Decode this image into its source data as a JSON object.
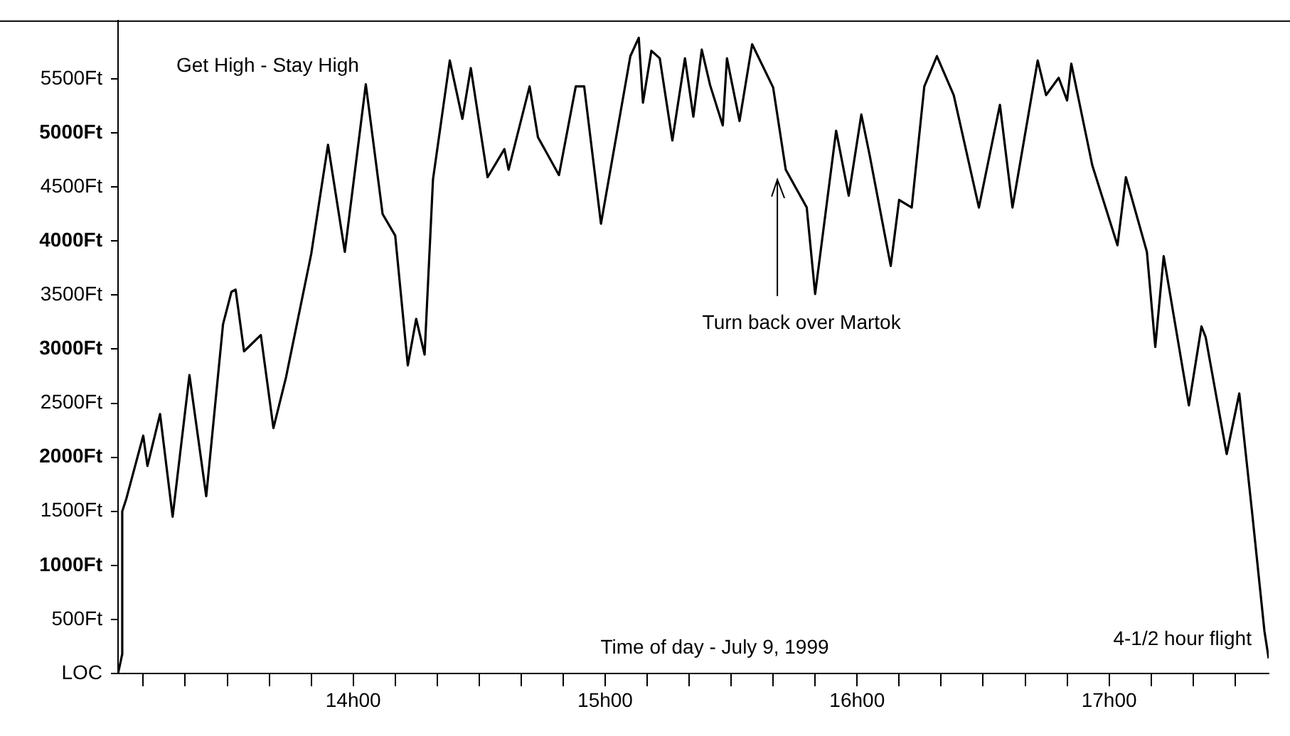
{
  "chart_data": {
    "type": "line",
    "xlabel": "Time of day - July 9, 1999",
    "annotations": [
      "Get High - Stay High",
      "Turn back over Martok",
      "4-1/2 hour flight"
    ],
    "x": [
      "1999-07-09T13:04",
      "1999-07-09T13:05",
      "1999-07-09T13:05",
      "1999-07-09T13:06",
      "1999-07-09T13:10",
      "1999-07-09T13:11",
      "1999-07-09T13:14",
      "1999-07-09T13:17",
      "1999-07-09T13:21",
      "1999-07-09T13:25",
      "1999-07-09T13:29",
      "1999-07-09T13:31",
      "1999-07-09T13:32",
      "1999-07-09T13:34",
      "1999-07-09T13:38",
      "1999-07-09T13:41",
      "1999-07-09T13:44",
      "1999-07-09T13:50",
      "1999-07-09T13:54",
      "1999-07-09T13:58",
      "1999-07-09T14:03",
      "1999-07-09T14:07",
      "1999-07-09T14:10",
      "1999-07-09T14:13",
      "1999-07-09T14:15",
      "1999-07-09T14:17",
      "1999-07-09T14:19",
      "1999-07-09T14:23",
      "1999-07-09T14:26",
      "1999-07-09T14:28",
      "1999-07-09T14:32",
      "1999-07-09T14:36",
      "1999-07-09T14:37",
      "1999-07-09T14:42",
      "1999-07-09T14:44",
      "1999-07-09T14:49",
      "1999-07-09T14:53",
      "1999-07-09T14:55",
      "1999-07-09T14:59",
      "1999-07-09T15:06",
      "1999-07-09T15:08",
      "1999-07-09T15:09",
      "1999-07-09T15:11",
      "1999-07-09T15:13",
      "1999-07-09T15:16",
      "1999-07-09T15:19",
      "1999-07-09T15:21",
      "1999-07-09T15:23",
      "1999-07-09T15:25",
      "1999-07-09T15:28",
      "1999-07-09T15:29",
      "1999-07-09T15:32",
      "1999-07-09T15:35",
      "1999-07-09T15:40",
      "1999-07-09T15:43",
      "1999-07-09T15:48",
      "1999-07-09T15:50",
      "1999-07-09T15:55",
      "1999-07-09T15:58",
      "1999-07-09T16:01",
      "1999-07-09T16:03",
      "1999-07-09T16:08",
      "1999-07-09T16:10",
      "1999-07-09T16:13",
      "1999-07-09T16:16",
      "1999-07-09T16:19",
      "1999-07-09T16:23",
      "1999-07-09T16:29",
      "1999-07-09T16:34",
      "1999-07-09T16:37",
      "1999-07-09T16:43",
      "1999-07-09T16:45",
      "1999-07-09T16:48",
      "1999-07-09T16:50",
      "1999-07-09T16:51",
      "1999-07-09T16:56",
      "1999-07-09T17:02",
      "1999-07-09T17:04",
      "1999-07-09T17:09",
      "1999-07-09T17:11",
      "1999-07-09T17:13",
      "1999-07-09T17:19",
      "1999-07-09T17:22",
      "1999-07-09T17:23",
      "1999-07-09T17:28",
      "1999-07-09T17:31",
      "1999-07-09T17:34",
      "1999-07-09T17:37",
      "1999-07-09T17:38"
    ],
    "series": [
      {
        "color": "#000000",
        "values": [
          0,
          180,
          1500,
          1620,
          2200,
          1920,
          2400,
          1450,
          2760,
          1640,
          3230,
          3530,
          3550,
          2980,
          3130,
          2270,
          2740,
          3880,
          4890,
          3900,
          5450,
          4250,
          4050,
          2850,
          3280,
          2950,
          4570,
          5670,
          5130,
          5600,
          4590,
          4850,
          4660,
          5430,
          4960,
          4610,
          5430,
          5430,
          4160,
          5710,
          5880,
          5280,
          5760,
          5690,
          4930,
          5690,
          5150,
          5770,
          5440,
          5070,
          5690,
          5110,
          5820,
          5420,
          4660,
          4310,
          3510,
          5020,
          4420,
          5170,
          4790,
          3770,
          4380,
          4310,
          5430,
          5710,
          5350,
          4310,
          5260,
          4310,
          5670,
          5350,
          5510,
          5300,
          5640,
          4700,
          3960,
          4590,
          3900,
          3020,
          3860,
          2480,
          3210,
          3110,
          2030,
          2590,
          1510,
          390,
          140
        ]
      }
    ],
    "xlim": [
      "1999-07-09T13:04",
      "1999-07-09T17:38"
    ],
    "xticks": [
      {
        "value": "1999-07-09T13:10",
        "label": null
      },
      {
        "value": "1999-07-09T13:20",
        "label": null
      },
      {
        "value": "1999-07-09T13:30",
        "label": null
      },
      {
        "value": "1999-07-09T13:40",
        "label": null
      },
      {
        "value": "1999-07-09T13:50",
        "label": null
      },
      {
        "value": "1999-07-09T14:00",
        "label": "14h00"
      },
      {
        "value": "1999-07-09T14:10",
        "label": null
      },
      {
        "value": "1999-07-09T14:20",
        "label": null
      },
      {
        "value": "1999-07-09T14:30",
        "label": null
      },
      {
        "value": "1999-07-09T14:40",
        "label": null
      },
      {
        "value": "1999-07-09T14:50",
        "label": null
      },
      {
        "value": "1999-07-09T15:00",
        "label": "15h00"
      },
      {
        "value": "1999-07-09T15:10",
        "label": null
      },
      {
        "value": "1999-07-09T15:20",
        "label": null
      },
      {
        "value": "1999-07-09T15:30",
        "label": null
      },
      {
        "value": "1999-07-09T15:40",
        "label": null
      },
      {
        "value": "1999-07-09T15:50",
        "label": null
      },
      {
        "value": "1999-07-09T16:00",
        "label": "16h00"
      },
      {
        "value": "1999-07-09T16:10",
        "label": null
      },
      {
        "value": "1999-07-09T16:20",
        "label": null
      },
      {
        "value": "1999-07-09T16:30",
        "label": null
      },
      {
        "value": "1999-07-09T16:40",
        "label": null
      },
      {
        "value": "1999-07-09T16:50",
        "label": null
      },
      {
        "value": "1999-07-09T17:00",
        "label": "17h00"
      },
      {
        "value": "1999-07-09T17:10",
        "label": null
      },
      {
        "value": "1999-07-09T17:20",
        "label": null
      },
      {
        "value": "1999-07-09T17:30",
        "label": null
      }
    ],
    "ylim": [
      0,
      6040
    ],
    "yticks": [
      {
        "value": 0,
        "label": "LOC"
      },
      {
        "value": 500,
        "label": "500Ft"
      },
      {
        "value": 1000,
        "label": "1000Ft"
      },
      {
        "value": 1500,
        "label": "1500Ft"
      },
      {
        "value": 2000,
        "label": "2000Ft"
      },
      {
        "value": 2500,
        "label": "2500Ft"
      },
      {
        "value": 3000,
        "label": "3000Ft"
      },
      {
        "value": 3500,
        "label": "3500Ft"
      },
      {
        "value": 4000,
        "label": "4000Ft"
      },
      {
        "value": 4500,
        "label": "4500Ft"
      },
      {
        "value": 5000,
        "label": "5000Ft"
      },
      {
        "value": 5500,
        "label": "5500Ft"
      }
    ],
    "grid": false,
    "legend": false,
    "marker": "none",
    "line_style": "solid"
  }
}
